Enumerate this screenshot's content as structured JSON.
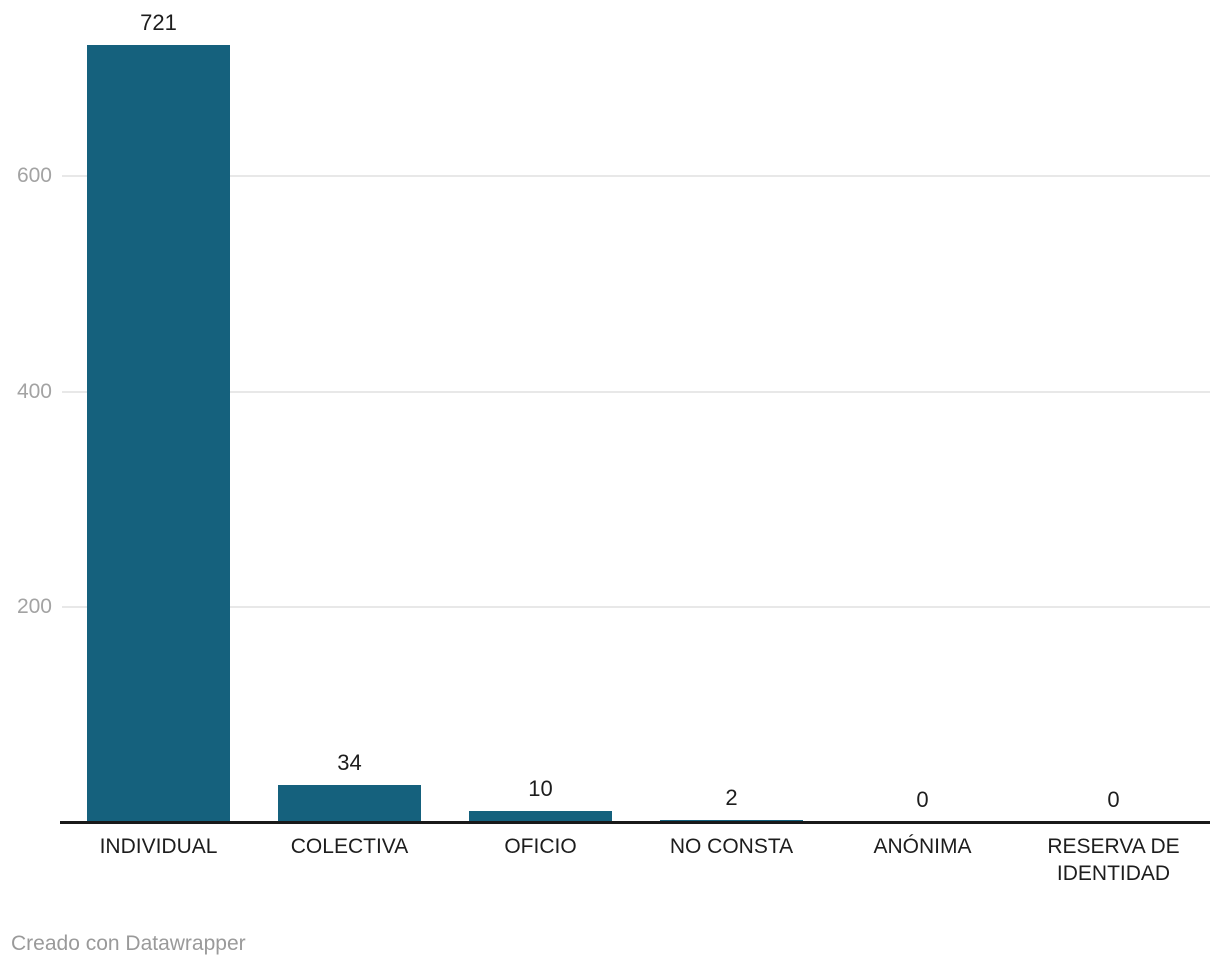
{
  "chart_data": {
    "type": "bar",
    "categories": [
      "INDIVIDUAL",
      "COLECTIVA",
      "OFICIO",
      "NO CONSTA",
      "ANÓNIMA",
      "RESERVA DE IDENTIDAD"
    ],
    "values": [
      721,
      34,
      10,
      2,
      0,
      0
    ],
    "value_labels": [
      "721",
      "34",
      "10",
      "2",
      "0",
      "0"
    ],
    "yticks": [
      200,
      400,
      600
    ],
    "ylim": [
      0,
      760
    ],
    "grid": true,
    "legend": "none",
    "bar_color": "#15617d"
  },
  "colors": {
    "bar": "#15617d",
    "gridline": "#e8e8e8",
    "axis_line": "#191919",
    "tick_label": "#a3a3a3",
    "data_label": "#1d1d1d",
    "footer_text": "#9a9a9a"
  },
  "footer": {
    "prefix": "Creado con ",
    "link_label": "Datawrapper"
  }
}
